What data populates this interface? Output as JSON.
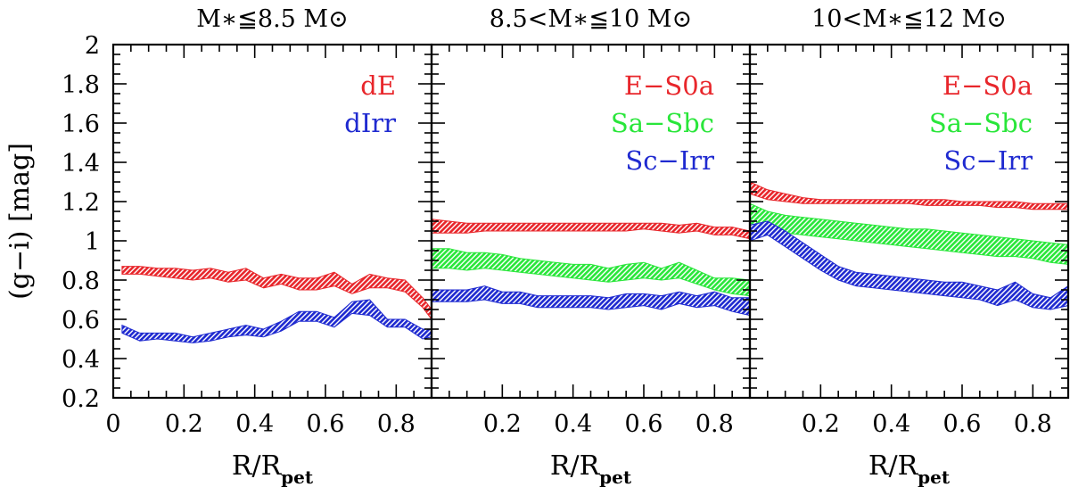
{
  "chart_data": {
    "type": "area",
    "ylabel": "(g−i)  [mag]",
    "xlabel_main": "R/R",
    "xlabel_sub": "pet",
    "ylim": [
      0.2,
      2.0
    ],
    "y_ticks": [
      0.2,
      0.4,
      0.6,
      0.8,
      1.0,
      1.2,
      1.4,
      1.6,
      1.8,
      2.0
    ],
    "y_tick_labels": [
      "0.2",
      "0.4",
      "0.6",
      "0.8",
      "1",
      "1.2",
      "1.4",
      "1.6",
      "1.8",
      "2"
    ],
    "colors": {
      "red": "#e8262b",
      "green": "#29e63a",
      "blue": "#1f2ad0"
    },
    "panels": [
      {
        "title": "M∗≦8.5  M⊙",
        "xlim": [
          0.0,
          0.9
        ],
        "x_ticks": [
          0,
          0.2,
          0.4,
          0.6,
          0.8
        ],
        "x_tick_labels": [
          "0",
          "0.2",
          "0.4",
          "0.6",
          "0.8"
        ],
        "series": [
          {
            "name": "dE",
            "color": "red",
            "x": [
              0.025,
              0.075,
              0.125,
              0.175,
              0.225,
              0.275,
              0.325,
              0.375,
              0.425,
              0.475,
              0.525,
              0.575,
              0.625,
              0.675,
              0.725,
              0.775,
              0.825,
              0.875,
              0.9
            ],
            "upper": [
              0.87,
              0.87,
              0.86,
              0.86,
              0.85,
              0.86,
              0.84,
              0.86,
              0.81,
              0.83,
              0.81,
              0.81,
              0.84,
              0.78,
              0.83,
              0.81,
              0.8,
              0.71,
              0.65
            ],
            "lower": [
              0.83,
              0.83,
              0.82,
              0.81,
              0.8,
              0.81,
              0.79,
              0.8,
              0.76,
              0.78,
              0.75,
              0.75,
              0.77,
              0.73,
              0.76,
              0.76,
              0.74,
              0.66,
              0.6
            ]
          },
          {
            "name": "dIrr",
            "color": "blue",
            "x": [
              0.025,
              0.075,
              0.125,
              0.175,
              0.225,
              0.275,
              0.325,
              0.375,
              0.425,
              0.475,
              0.525,
              0.575,
              0.625,
              0.675,
              0.725,
              0.775,
              0.825,
              0.875,
              0.9
            ],
            "upper": [
              0.57,
              0.53,
              0.53,
              0.53,
              0.51,
              0.53,
              0.55,
              0.57,
              0.55,
              0.59,
              0.64,
              0.64,
              0.61,
              0.69,
              0.7,
              0.6,
              0.6,
              0.55,
              0.55
            ],
            "lower": [
              0.53,
              0.49,
              0.5,
              0.49,
              0.48,
              0.49,
              0.51,
              0.52,
              0.51,
              0.54,
              0.59,
              0.59,
              0.56,
              0.63,
              0.62,
              0.56,
              0.56,
              0.5,
              0.51
            ]
          }
        ]
      },
      {
        "title": "8.5<M∗≦10  M⊙",
        "xlim": [
          0.0,
          0.9
        ],
        "x_ticks": [
          0.2,
          0.4,
          0.6,
          0.8
        ],
        "x_tick_labels": [
          "0.2",
          "0.4",
          "0.6",
          "0.8"
        ],
        "series": [
          {
            "name": "E−S0a",
            "color": "red",
            "x": [
              0.0,
              0.05,
              0.1,
              0.15,
              0.2,
              0.25,
              0.3,
              0.35,
              0.4,
              0.45,
              0.5,
              0.55,
              0.6,
              0.65,
              0.7,
              0.75,
              0.8,
              0.85,
              0.9
            ],
            "upper": [
              1.11,
              1.1,
              1.09,
              1.09,
              1.09,
              1.09,
              1.09,
              1.09,
              1.09,
              1.09,
              1.09,
              1.09,
              1.09,
              1.09,
              1.08,
              1.09,
              1.07,
              1.07,
              1.05
            ],
            "lower": [
              1.04,
              1.04,
              1.04,
              1.05,
              1.05,
              1.05,
              1.05,
              1.05,
              1.05,
              1.05,
              1.05,
              1.05,
              1.06,
              1.05,
              1.04,
              1.05,
              1.03,
              1.03,
              1.01
            ]
          },
          {
            "name": "Sa−Sbc",
            "color": "green",
            "x": [
              0.0,
              0.05,
              0.1,
              0.15,
              0.2,
              0.25,
              0.3,
              0.35,
              0.4,
              0.45,
              0.5,
              0.55,
              0.6,
              0.65,
              0.7,
              0.75,
              0.8,
              0.85,
              0.9
            ],
            "upper": [
              0.96,
              0.96,
              0.94,
              0.94,
              0.93,
              0.91,
              0.9,
              0.89,
              0.88,
              0.88,
              0.86,
              0.88,
              0.89,
              0.86,
              0.89,
              0.85,
              0.81,
              0.81,
              0.8
            ],
            "lower": [
              0.86,
              0.86,
              0.85,
              0.86,
              0.85,
              0.84,
              0.83,
              0.82,
              0.81,
              0.8,
              0.79,
              0.8,
              0.81,
              0.8,
              0.81,
              0.78,
              0.75,
              0.73,
              0.72
            ]
          },
          {
            "name": "Sc−Irr",
            "color": "blue",
            "x": [
              0.0,
              0.05,
              0.1,
              0.15,
              0.2,
              0.25,
              0.3,
              0.35,
              0.4,
              0.45,
              0.5,
              0.55,
              0.6,
              0.65,
              0.7,
              0.75,
              0.8,
              0.85,
              0.9
            ],
            "upper": [
              0.75,
              0.75,
              0.75,
              0.77,
              0.74,
              0.74,
              0.72,
              0.72,
              0.72,
              0.72,
              0.71,
              0.73,
              0.73,
              0.72,
              0.74,
              0.72,
              0.74,
              0.71,
              0.71
            ],
            "lower": [
              0.69,
              0.69,
              0.69,
              0.7,
              0.68,
              0.68,
              0.66,
              0.66,
              0.66,
              0.66,
              0.65,
              0.66,
              0.67,
              0.65,
              0.68,
              0.66,
              0.67,
              0.64,
              0.62
            ]
          }
        ]
      },
      {
        "title": "10<M∗≦12  M⊙",
        "xlim": [
          0.0,
          0.9
        ],
        "x_ticks": [
          0.2,
          0.4,
          0.6,
          0.8
        ],
        "x_tick_labels": [
          "0.2",
          "0.4",
          "0.6",
          "0.8"
        ],
        "series": [
          {
            "name": "E−S0a",
            "color": "red",
            "x": [
              0.0,
              0.05,
              0.1,
              0.15,
              0.2,
              0.25,
              0.3,
              0.35,
              0.4,
              0.45,
              0.5,
              0.55,
              0.6,
              0.65,
              0.7,
              0.75,
              0.8,
              0.85,
              0.9
            ],
            "upper": [
              1.3,
              1.26,
              1.24,
              1.22,
              1.21,
              1.21,
              1.21,
              1.21,
              1.21,
              1.21,
              1.21,
              1.21,
              1.2,
              1.2,
              1.2,
              1.2,
              1.19,
              1.19,
              1.19
            ],
            "lower": [
              1.24,
              1.21,
              1.2,
              1.19,
              1.19,
              1.19,
              1.19,
              1.19,
              1.19,
              1.19,
              1.18,
              1.18,
              1.18,
              1.18,
              1.17,
              1.17,
              1.16,
              1.16,
              1.16
            ]
          },
          {
            "name": "Sa−Sbc",
            "color": "green",
            "x": [
              0.0,
              0.05,
              0.1,
              0.15,
              0.2,
              0.25,
              0.3,
              0.35,
              0.4,
              0.45,
              0.5,
              0.55,
              0.6,
              0.65,
              0.7,
              0.75,
              0.8,
              0.85,
              0.9
            ],
            "upper": [
              1.19,
              1.15,
              1.13,
              1.12,
              1.11,
              1.1,
              1.09,
              1.08,
              1.07,
              1.06,
              1.06,
              1.05,
              1.04,
              1.03,
              1.02,
              1.01,
              1.0,
              0.99,
              0.98
            ],
            "lower": [
              1.09,
              1.06,
              1.04,
              1.03,
              1.02,
              1.01,
              1.0,
              0.99,
              0.98,
              0.97,
              0.96,
              0.95,
              0.94,
              0.93,
              0.92,
              0.92,
              0.91,
              0.89,
              0.88
            ]
          },
          {
            "name": "Sc−Irr",
            "color": "blue",
            "x": [
              0.0,
              0.05,
              0.1,
              0.15,
              0.2,
              0.25,
              0.3,
              0.35,
              0.4,
              0.45,
              0.5,
              0.55,
              0.6,
              0.65,
              0.7,
              0.75,
              0.8,
              0.85,
              0.9
            ],
            "upper": [
              1.08,
              1.1,
              1.05,
              0.99,
              0.93,
              0.87,
              0.84,
              0.83,
              0.82,
              0.81,
              0.8,
              0.79,
              0.79,
              0.77,
              0.75,
              0.79,
              0.73,
              0.71,
              0.77
            ],
            "lower": [
              1.0,
              1.03,
              0.97,
              0.91,
              0.85,
              0.8,
              0.77,
              0.76,
              0.75,
              0.74,
              0.73,
              0.72,
              0.71,
              0.7,
              0.67,
              0.7,
              0.66,
              0.65,
              0.67
            ]
          }
        ]
      }
    ]
  }
}
